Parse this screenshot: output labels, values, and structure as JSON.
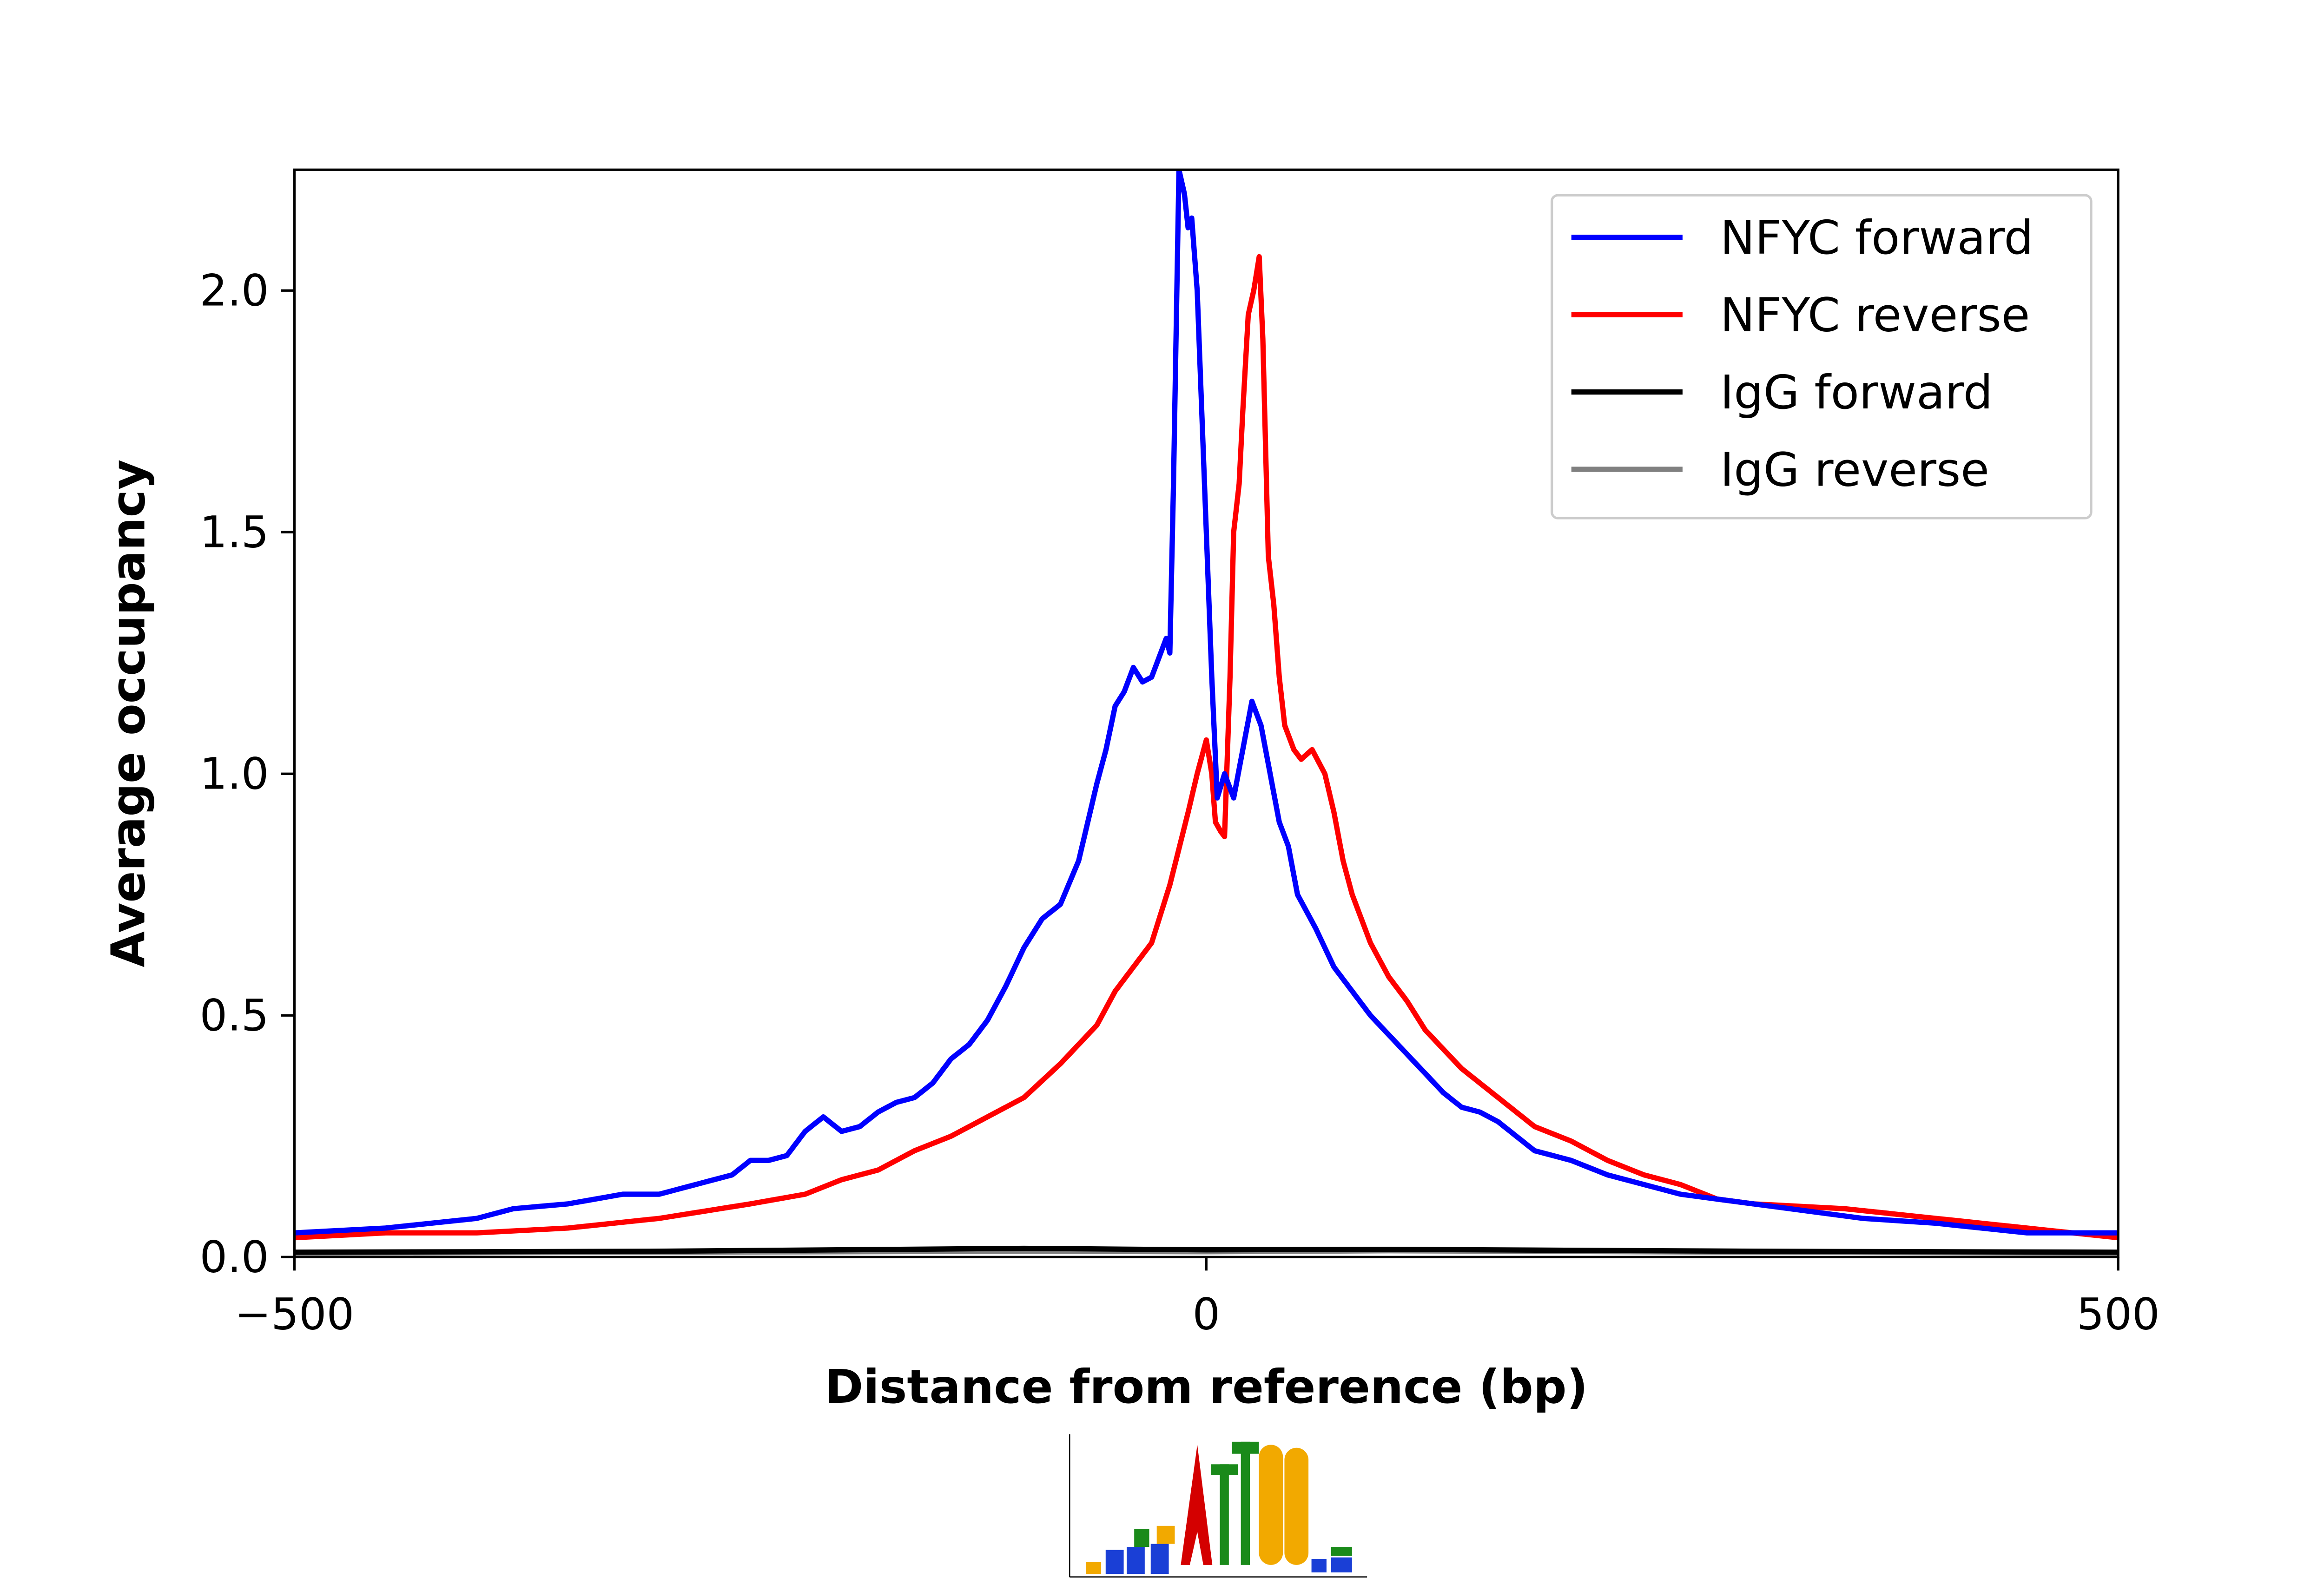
{
  "chart_data": {
    "type": "line",
    "xlabel": "Distance from reference (bp)",
    "ylabel": "Average occupancy",
    "xlim": [
      -500,
      500
    ],
    "ylim": [
      0,
      2.25
    ],
    "xticks": [
      {
        "value": -500,
        "label": "−500"
      },
      0,
      500
    ],
    "yticks": [
      {
        "value": 0,
        "label": "0.0"
      },
      0.5,
      {
        "value": 1,
        "label": "1.0"
      },
      1.5,
      {
        "value": 2,
        "label": "2.0"
      }
    ],
    "legend": "upper right",
    "series": [
      {
        "name": "NFYC forward",
        "color": "#0000ff",
        "x": [
          -500,
          -450,
          -400,
          -380,
          -350,
          -320,
          -300,
          -280,
          -260,
          -250,
          -240,
          -230,
          -220,
          -210,
          -200,
          -190,
          -180,
          -170,
          -160,
          -150,
          -140,
          -130,
          -120,
          -110,
          -100,
          -90,
          -80,
          -70,
          -60,
          -55,
          -50,
          -45,
          -40,
          -35,
          -30,
          -25,
          -22,
          -20,
          -18,
          -15,
          -12,
          -10,
          -8,
          -5,
          0,
          3,
          6,
          10,
          15,
          20,
          25,
          30,
          35,
          40,
          45,
          50,
          60,
          70,
          80,
          90,
          100,
          110,
          120,
          130,
          140,
          150,
          160,
          170,
          180,
          200,
          220,
          240,
          260,
          280,
          300,
          320,
          340,
          360,
          400,
          450,
          500
        ],
        "values": [
          0.05,
          0.06,
          0.08,
          0.1,
          0.11,
          0.13,
          0.13,
          0.15,
          0.17,
          0.2,
          0.2,
          0.21,
          0.26,
          0.29,
          0.26,
          0.27,
          0.3,
          0.32,
          0.33,
          0.36,
          0.41,
          0.44,
          0.49,
          0.56,
          0.64,
          0.7,
          0.73,
          0.82,
          0.98,
          1.05,
          1.14,
          1.17,
          1.22,
          1.19,
          1.2,
          1.25,
          1.28,
          1.25,
          1.6,
          2.25,
          2.2,
          2.13,
          2.15,
          2.0,
          1.5,
          1.2,
          0.95,
          1.0,
          0.95,
          1.05,
          1.15,
          1.1,
          1.0,
          0.9,
          0.85,
          0.75,
          0.68,
          0.6,
          0.55,
          0.5,
          0.46,
          0.42,
          0.38,
          0.34,
          0.31,
          0.3,
          0.28,
          0.25,
          0.22,
          0.2,
          0.17,
          0.15,
          0.13,
          0.12,
          0.11,
          0.1,
          0.09,
          0.08,
          0.07,
          0.05,
          0.05
        ]
      },
      {
        "name": "NFYC reverse",
        "color": "#ff0000",
        "x": [
          -500,
          -450,
          -400,
          -350,
          -300,
          -250,
          -220,
          -200,
          -180,
          -160,
          -140,
          -120,
          -100,
          -80,
          -60,
          -50,
          -40,
          -30,
          -20,
          -10,
          -5,
          0,
          3,
          5,
          8,
          10,
          13,
          15,
          18,
          20,
          23,
          26,
          29,
          31,
          34,
          37,
          40,
          43,
          48,
          52,
          58,
          65,
          70,
          75,
          80,
          90,
          100,
          110,
          120,
          130,
          140,
          150,
          160,
          170,
          180,
          200,
          220,
          240,
          260,
          280,
          300,
          350,
          400,
          450,
          500
        ],
        "values": [
          0.04,
          0.05,
          0.05,
          0.06,
          0.08,
          0.11,
          0.13,
          0.16,
          0.18,
          0.22,
          0.25,
          0.29,
          0.33,
          0.4,
          0.48,
          0.55,
          0.6,
          0.65,
          0.77,
          0.92,
          1.0,
          1.07,
          1.0,
          0.9,
          0.88,
          0.87,
          1.2,
          1.5,
          1.6,
          1.75,
          1.95,
          2.0,
          2.07,
          1.9,
          1.45,
          1.35,
          1.2,
          1.1,
          1.05,
          1.03,
          1.05,
          1.0,
          0.92,
          0.82,
          0.75,
          0.65,
          0.58,
          0.53,
          0.47,
          0.43,
          0.39,
          0.36,
          0.33,
          0.3,
          0.27,
          0.24,
          0.2,
          0.17,
          0.15,
          0.12,
          0.11,
          0.1,
          0.08,
          0.06,
          0.04
        ]
      },
      {
        "name": "IgG forward",
        "color": "#000000",
        "x": [
          -500,
          -300,
          -100,
          0,
          100,
          300,
          500
        ],
        "values": [
          0.01,
          0.012,
          0.018,
          0.015,
          0.016,
          0.012,
          0.01
        ]
      },
      {
        "name": "IgG reverse",
        "color": "#808080",
        "x": [
          -500,
          -300,
          -100,
          0,
          100,
          300,
          500
        ],
        "values": [
          0.008,
          0.01,
          0.012,
          0.011,
          0.013,
          0.01,
          0.008
        ]
      }
    ]
  }
}
